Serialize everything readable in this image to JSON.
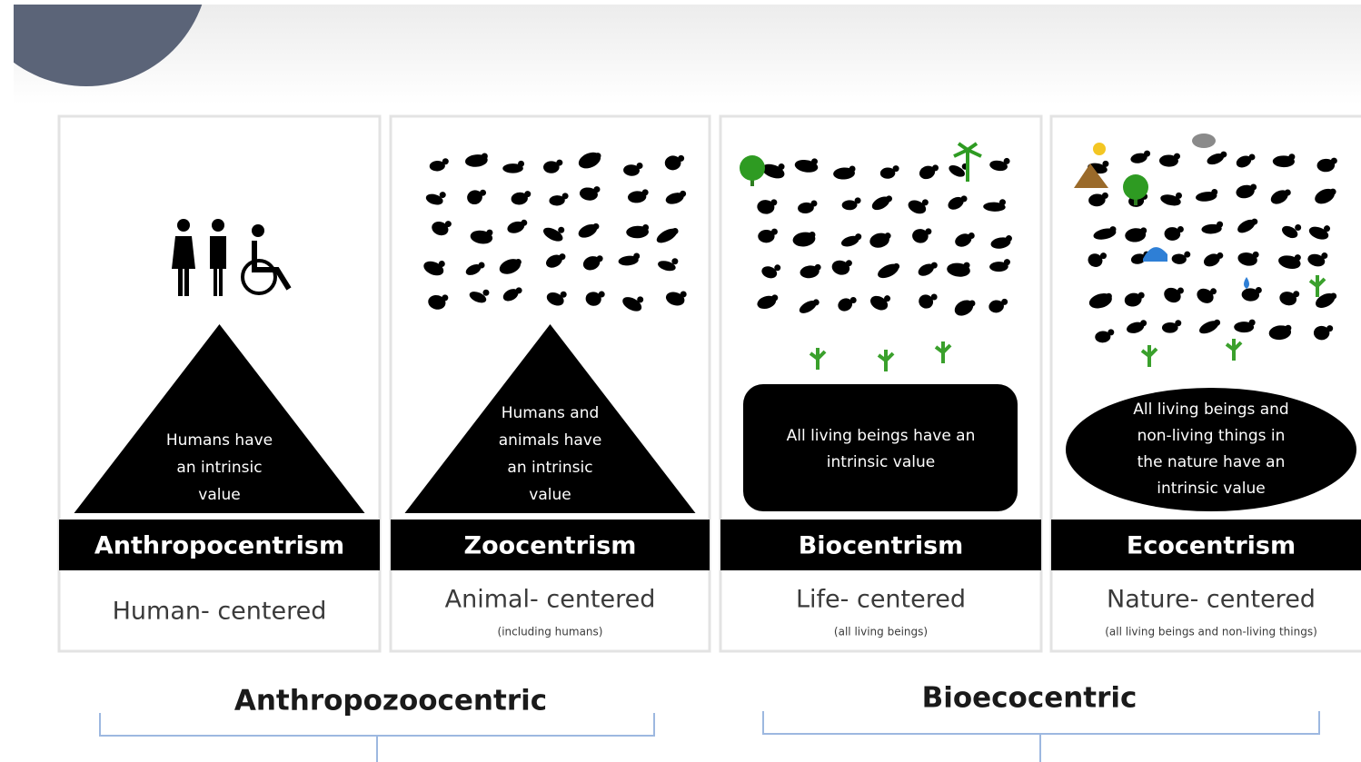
{
  "panels": [
    {
      "shape_text": [
        "Humans have",
        "an intrinsic",
        "value"
      ],
      "title": "Anthropocentrism",
      "subtitle": "Human- centered"
    },
    {
      "shape_text": [
        "Humans and",
        "animals have",
        "an intrinsic",
        "value"
      ],
      "title": "Zoocentrism",
      "subtitle": "Animal- centered",
      "note": "(including humans)"
    },
    {
      "shape_text": [
        "All living beings have an",
        "intrinsic value"
      ],
      "title": "Biocentrism",
      "subtitle": "Life- centered",
      "note": "(all living beings)"
    },
    {
      "shape_text": [
        "All living beings and",
        "non-living things in",
        "the nature have an",
        "intrinsic value"
      ],
      "title": "Ecocentrism",
      "subtitle": "Nature- centered",
      "note": "(all living beings and non-living things)"
    }
  ],
  "groups": [
    "Anthropozoocentric",
    "Bioecocentric"
  ]
}
